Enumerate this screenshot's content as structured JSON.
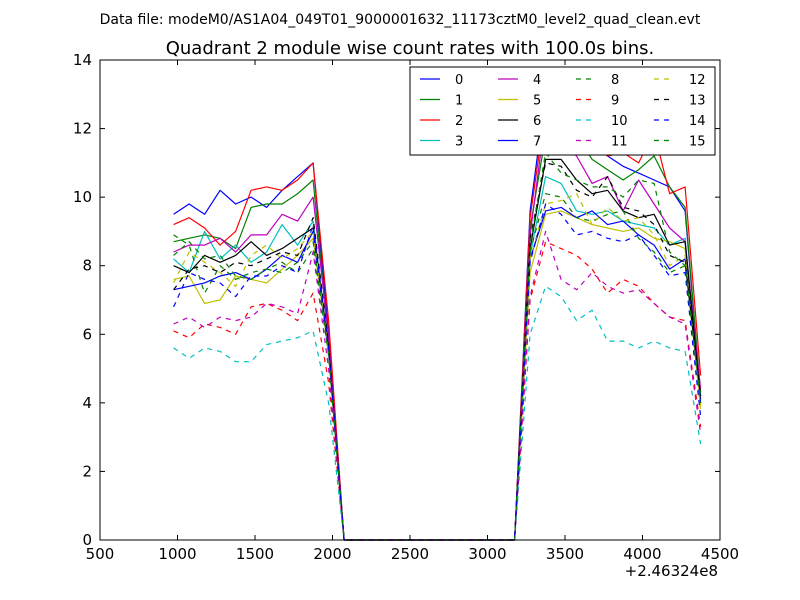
{
  "suptitle": "Data file: modeM0/AS1A04_049T01_9000001632_11173cztM0_level2_quad_clean.evt",
  "chart_data": {
    "type": "line",
    "title": "Quadrant 2 module wise count rates with 100.0s bins.",
    "xlabel": "",
    "ylabel": "",
    "x_offset_label": "+2.46324e8",
    "xlim": [
      500,
      4500
    ],
    "ylim": [
      0,
      14
    ],
    "x_ticks": [
      "500",
      "1000",
      "1500",
      "2000",
      "2500",
      "3000",
      "3500",
      "4000",
      "4500"
    ],
    "y_ticks": [
      "0",
      "2",
      "4",
      "6",
      "8",
      "10",
      "12",
      "14"
    ],
    "grid": false,
    "legend_position": "top-right",
    "x": [
      975,
      1075,
      1175,
      1275,
      1375,
      1475,
      1575,
      1675,
      1775,
      1875,
      1975,
      2075,
      2175,
      2275,
      2375,
      2475,
      2575,
      2675,
      2775,
      2875,
      2975,
      3075,
      3175,
      3275,
      3375,
      3475,
      3575,
      3675,
      3775,
      3875,
      3975,
      4075,
      4175,
      4275,
      4375
    ],
    "series": [
      {
        "name": "0",
        "color": "#0000ff",
        "dash": false,
        "values": [
          9.5,
          9.8,
          9.5,
          10.2,
          9.8,
          10.0,
          9.7,
          10.2,
          10.6,
          11.0,
          6.0,
          0,
          0,
          0,
          0,
          0,
          0,
          0,
          0,
          0,
          0,
          0,
          0,
          9.6,
          13.0,
          12.1,
          12.1,
          11.5,
          11.2,
          10.9,
          10.7,
          10.5,
          10.3,
          9.6,
          4.2
        ]
      },
      {
        "name": "1",
        "color": "#008000",
        "dash": false,
        "values": [
          8.7,
          8.8,
          8.9,
          8.8,
          8.5,
          9.7,
          9.8,
          9.8,
          10.1,
          10.5,
          5.8,
          0,
          0,
          0,
          0,
          0,
          0,
          0,
          0,
          0,
          0,
          0,
          0,
          9.1,
          11.8,
          12.2,
          11.8,
          11.1,
          10.8,
          10.5,
          10.8,
          11.2,
          10.3,
          9.7,
          4.3
        ]
      },
      {
        "name": "2",
        "color": "#ff0000",
        "dash": false,
        "values": [
          9.2,
          9.4,
          9.1,
          8.6,
          9.0,
          10.2,
          10.3,
          10.2,
          10.5,
          11.0,
          6.4,
          0,
          0,
          0,
          0,
          0,
          0,
          0,
          0,
          0,
          0,
          0,
          0,
          9.4,
          12.6,
          12.2,
          12.0,
          11.5,
          11.2,
          11.3,
          11.0,
          11.9,
          10.1,
          10.3,
          4.8
        ]
      },
      {
        "name": "3",
        "color": "#00bfbf",
        "dash": false,
        "values": [
          8.2,
          7.8,
          9.0,
          8.2,
          8.6,
          8.1,
          8.4,
          9.2,
          8.6,
          9.3,
          5.5,
          0,
          0,
          0,
          0,
          0,
          0,
          0,
          0,
          0,
          0,
          0,
          0,
          8.3,
          10.6,
          10.4,
          9.6,
          9.5,
          9.6,
          9.3,
          9.2,
          9.1,
          8.6,
          8.8,
          4.0
        ]
      },
      {
        "name": "4",
        "color": "#bf00bf",
        "dash": false,
        "values": [
          8.4,
          8.6,
          8.6,
          8.8,
          8.4,
          8.9,
          8.9,
          9.5,
          9.3,
          10.0,
          5.9,
          0,
          0,
          0,
          0,
          0,
          0,
          0,
          0,
          0,
          0,
          0,
          0,
          8.9,
          12.4,
          11.6,
          11.2,
          10.4,
          10.6,
          9.6,
          10.5,
          9.8,
          9.1,
          8.7,
          4.4
        ]
      },
      {
        "name": "5",
        "color": "#bfbf00",
        "dash": false,
        "values": [
          7.6,
          7.7,
          6.9,
          7.0,
          7.7,
          7.6,
          7.5,
          7.9,
          8.3,
          8.8,
          5.4,
          0,
          0,
          0,
          0,
          0,
          0,
          0,
          0,
          0,
          0,
          0,
          0,
          7.8,
          9.5,
          9.6,
          9.4,
          9.2,
          9.1,
          9.0,
          9.1,
          8.8,
          8.7,
          8.5,
          3.9
        ]
      },
      {
        "name": "6",
        "color": "#000000",
        "dash": false,
        "values": [
          8.0,
          7.8,
          8.3,
          8.1,
          8.3,
          8.7,
          8.3,
          8.5,
          8.8,
          9.1,
          5.6,
          0,
          0,
          0,
          0,
          0,
          0,
          0,
          0,
          0,
          0,
          0,
          0,
          8.5,
          11.1,
          11.1,
          10.5,
          10.1,
          10.2,
          9.6,
          9.4,
          9.5,
          8.6,
          8.7,
          4.1
        ]
      },
      {
        "name": "7",
        "color": "#0000ff",
        "dash": false,
        "values": [
          7.3,
          7.4,
          7.5,
          7.7,
          7.8,
          7.6,
          7.9,
          8.3,
          8.1,
          9.0,
          5.5,
          0,
          0,
          0,
          0,
          0,
          0,
          0,
          0,
          0,
          0,
          0,
          0,
          8.2,
          9.6,
          9.7,
          9.4,
          9.6,
          9.2,
          9.3,
          8.9,
          8.6,
          7.9,
          8.2,
          4.0
        ]
      },
      {
        "name": "8",
        "color": "#008000",
        "dash": true,
        "values": [
          8.9,
          8.6,
          7.2,
          8.0,
          7.6,
          7.8,
          7.9,
          8.1,
          7.8,
          8.5,
          5.4,
          0,
          0,
          0,
          0,
          0,
          0,
          0,
          0,
          0,
          0,
          0,
          0,
          8.4,
          10.1,
          10.0,
          9.4,
          9.3,
          9.5,
          9.6,
          8.8,
          8.4,
          7.8,
          8.0,
          4.1
        ]
      },
      {
        "name": "9",
        "color": "#ff0000",
        "dash": true,
        "values": [
          6.1,
          5.9,
          6.3,
          6.2,
          6.0,
          6.8,
          6.9,
          6.7,
          6.4,
          7.2,
          4.6,
          0,
          0,
          0,
          0,
          0,
          0,
          0,
          0,
          0,
          0,
          0,
          0,
          7.0,
          8.7,
          8.5,
          8.3,
          7.9,
          7.2,
          7.6,
          7.4,
          6.9,
          6.5,
          6.4,
          3.3
        ]
      },
      {
        "name": "10",
        "color": "#00bfbf",
        "dash": true,
        "values": [
          5.6,
          5.3,
          5.6,
          5.5,
          5.2,
          5.2,
          5.7,
          5.8,
          5.9,
          6.1,
          4.0,
          0,
          0,
          0,
          0,
          0,
          0,
          0,
          0,
          0,
          0,
          0,
          0,
          6.0,
          7.4,
          7.1,
          6.4,
          6.7,
          5.8,
          5.8,
          5.6,
          5.8,
          5.6,
          5.5,
          2.8
        ]
      },
      {
        "name": "11",
        "color": "#bf00bf",
        "dash": true,
        "values": [
          6.3,
          6.5,
          6.2,
          6.5,
          6.4,
          6.5,
          6.9,
          6.8,
          6.6,
          8.4,
          5.0,
          0,
          0,
          0,
          0,
          0,
          0,
          0,
          0,
          0,
          0,
          0,
          0,
          7.1,
          9.0,
          7.6,
          7.3,
          7.8,
          7.4,
          7.2,
          7.3,
          6.9,
          6.5,
          6.3,
          3.1
        ]
      },
      {
        "name": "12",
        "color": "#bfbf00",
        "dash": true,
        "values": [
          7.5,
          8.4,
          8.1,
          7.8,
          7.4,
          8.3,
          8.6,
          8.2,
          8.5,
          9.0,
          5.5,
          0,
          0,
          0,
          0,
          0,
          0,
          0,
          0,
          0,
          0,
          0,
          0,
          8.2,
          9.8,
          9.9,
          10.1,
          9.2,
          9.7,
          9.3,
          9.4,
          8.9,
          8.0,
          8.3,
          3.8
        ]
      },
      {
        "name": "13",
        "color": "#000000",
        "dash": true,
        "values": [
          7.3,
          7.9,
          8.0,
          7.8,
          8.1,
          8.0,
          8.2,
          8.4,
          8.3,
          9.4,
          5.7,
          0,
          0,
          0,
          0,
          0,
          0,
          0,
          0,
          0,
          0,
          0,
          0,
          8.8,
          11.0,
          10.9,
          10.2,
          10.0,
          10.6,
          9.7,
          9.6,
          9.2,
          8.3,
          8.1,
          4.2
        ]
      },
      {
        "name": "14",
        "color": "#0000ff",
        "dash": true,
        "values": [
          6.8,
          7.8,
          7.6,
          7.5,
          7.1,
          7.7,
          7.7,
          8.0,
          7.8,
          9.2,
          5.6,
          0,
          0,
          0,
          0,
          0,
          0,
          0,
          0,
          0,
          0,
          0,
          0,
          8.1,
          9.8,
          9.5,
          8.9,
          9.0,
          8.8,
          8.7,
          8.9,
          8.3,
          7.7,
          7.8,
          3.6
        ]
      },
      {
        "name": "15",
        "color": "#008000",
        "dash": true,
        "values": [
          8.3,
          8.7,
          8.2,
          8.3,
          7.7,
          7.6,
          7.9,
          7.8,
          8.1,
          8.7,
          5.4,
          0,
          0,
          0,
          0,
          0,
          0,
          0,
          0,
          0,
          0,
          0,
          0,
          8.6,
          11.3,
          10.7,
          10.5,
          10.3,
          10.3,
          10.0,
          10.5,
          10.4,
          8.4,
          8.0,
          4.0
        ]
      }
    ]
  }
}
